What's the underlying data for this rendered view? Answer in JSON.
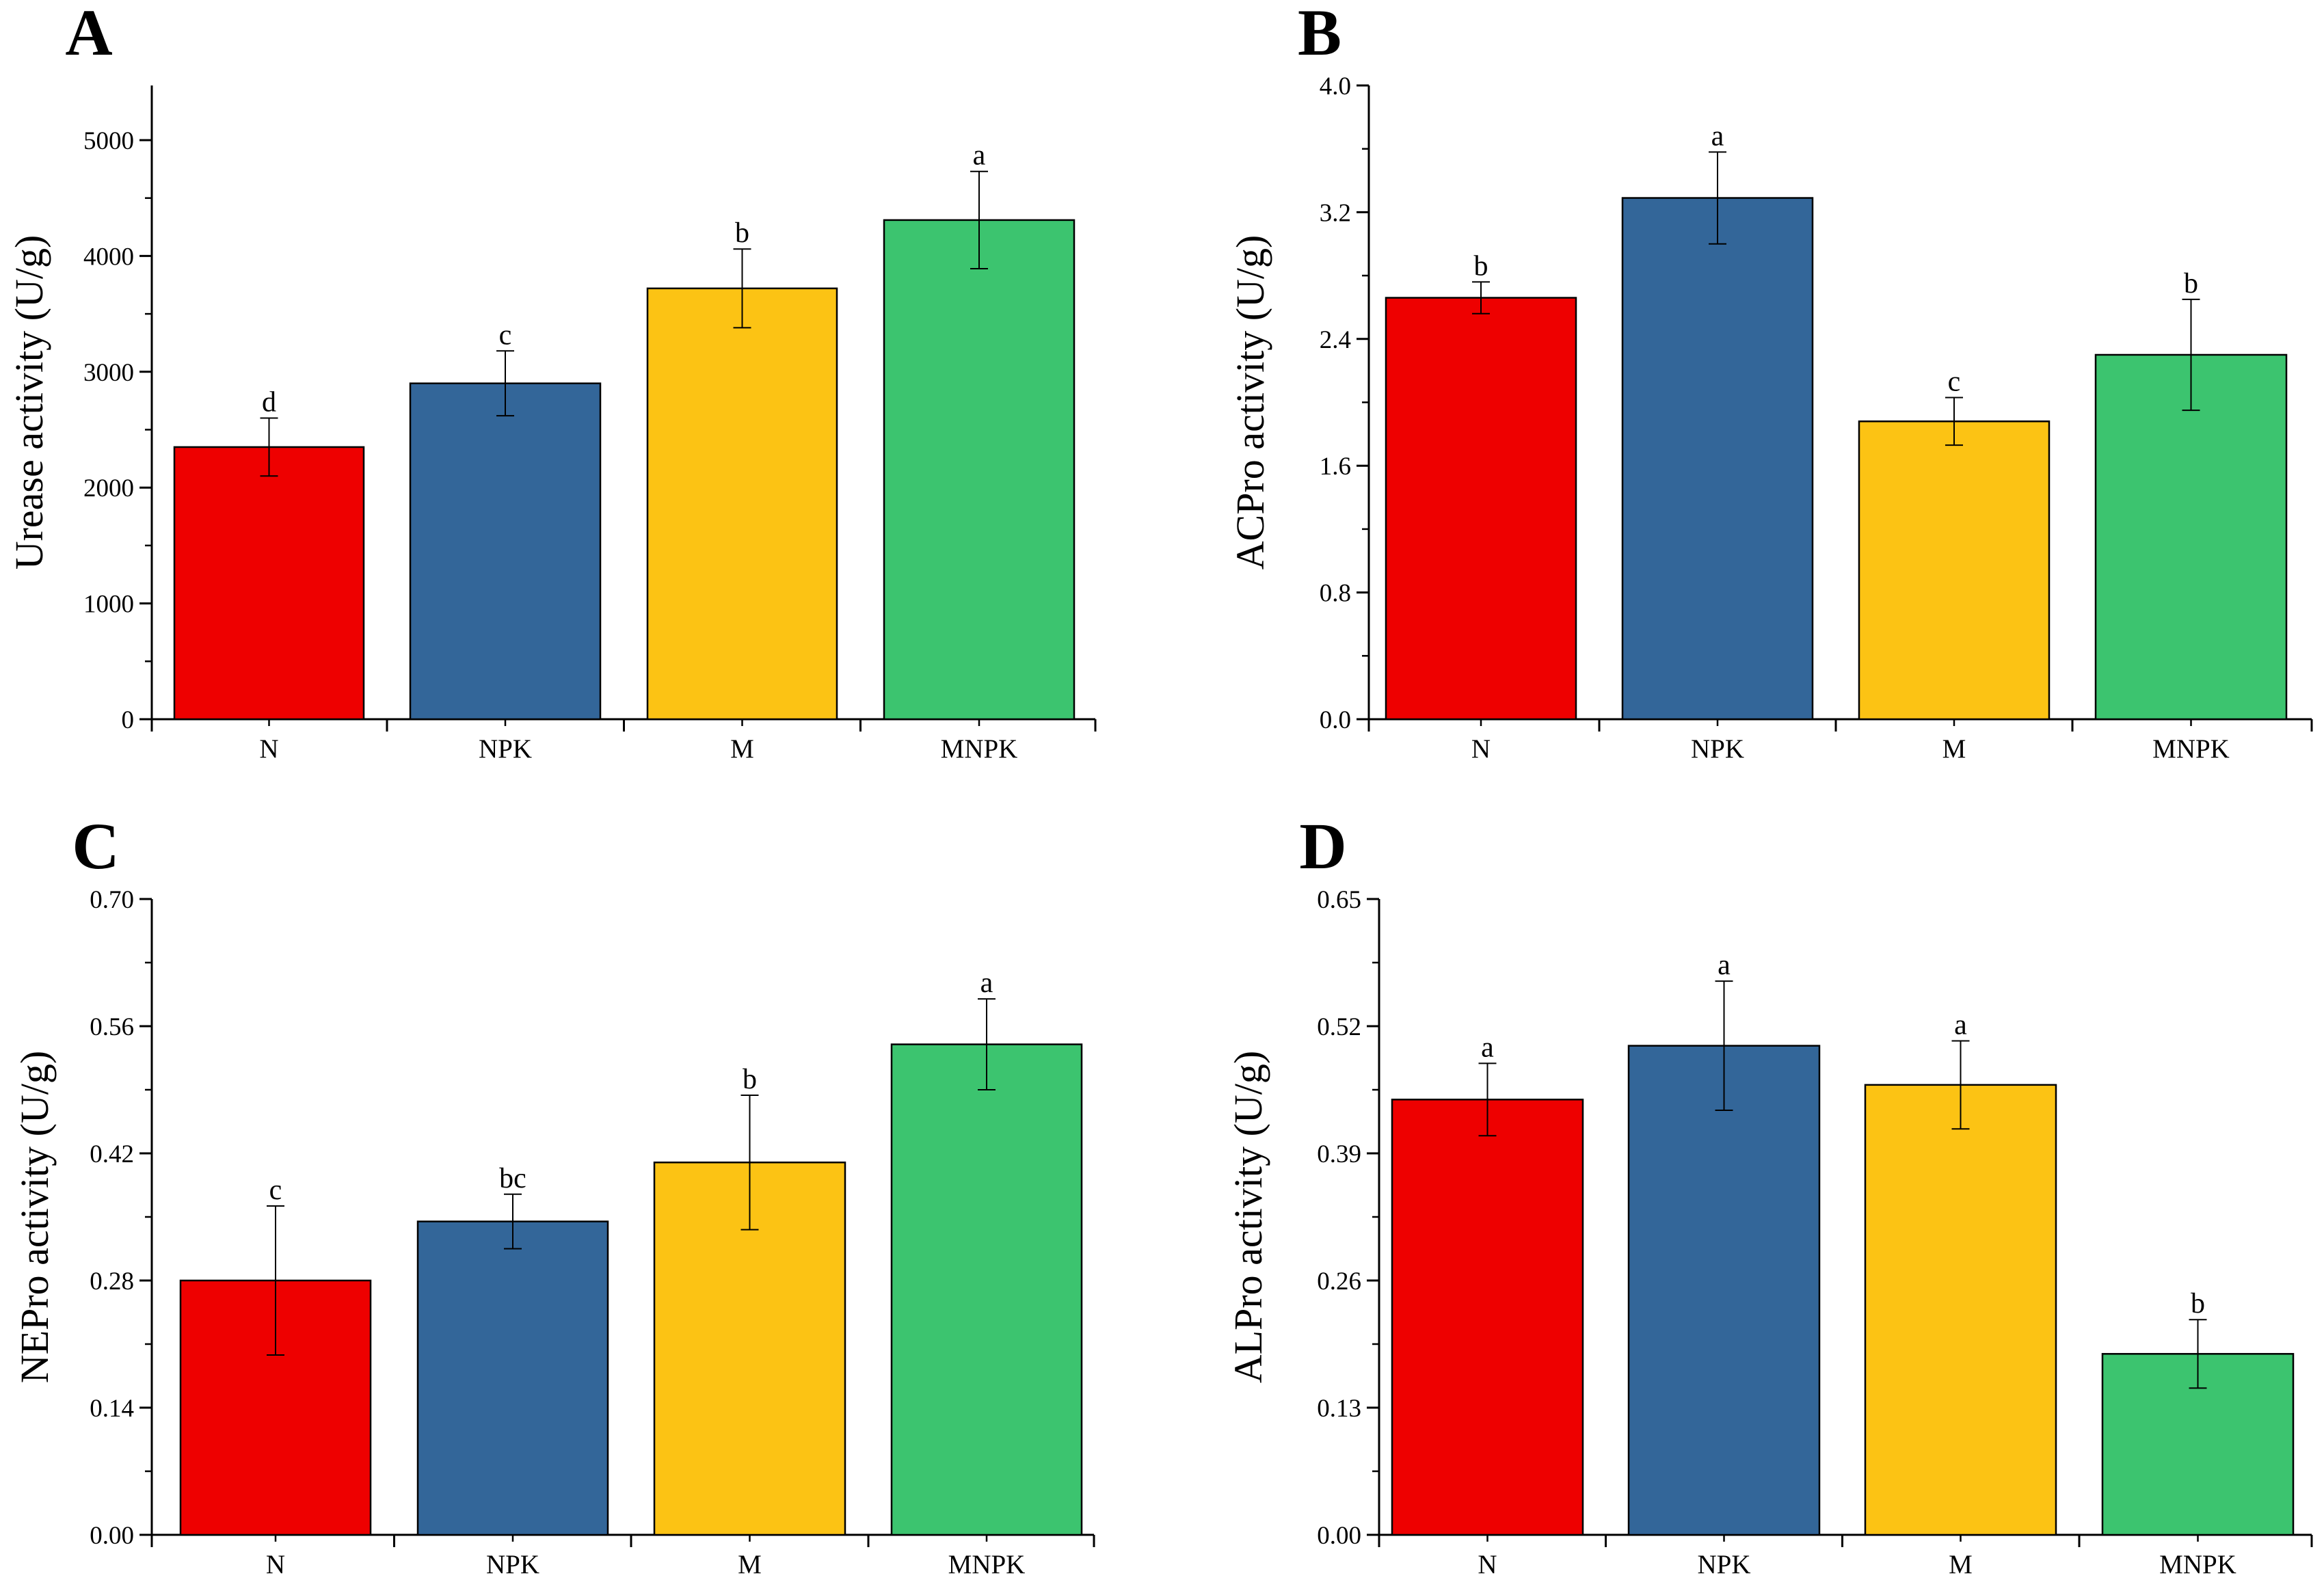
{
  "chart_data": [
    {
      "type": "bar",
      "panel": "A",
      "categories": [
        "N",
        "NPK",
        "M",
        "MNPK"
      ],
      "values": [
        2350,
        2900,
        3720,
        4310
      ],
      "errors": [
        250,
        280,
        340,
        420
      ],
      "significance": [
        "d",
        "c",
        "b",
        "a"
      ],
      "colors": [
        "#ee0000",
        "#336699",
        "#fcc314",
        "#3cc46f"
      ],
      "ylabel": "Urease activity (U/g)",
      "ylim": [
        0,
        5500
      ],
      "yticks": [
        0,
        1000,
        2000,
        3000,
        4000,
        5000
      ],
      "ytick_labels": [
        "0",
        "1000",
        "2000",
        "3000",
        "4000",
        "5000"
      ]
    },
    {
      "type": "bar",
      "panel": "B",
      "categories": [
        "N",
        "NPK",
        "M",
        "MNPK"
      ],
      "values": [
        2.66,
        3.29,
        1.88,
        2.3
      ],
      "errors": [
        0.1,
        0.29,
        0.15,
        0.35
      ],
      "significance": [
        "b",
        "a",
        "c",
        "b"
      ],
      "colors": [
        "#ee0000",
        "#336699",
        "#fcc314",
        "#3cc46f"
      ],
      "ylabel": "ACPro activity (U/g)",
      "ylim": [
        0,
        4.0
      ],
      "yticks": [
        0,
        0.8,
        1.6,
        2.4,
        3.2,
        4.0
      ],
      "ytick_labels": [
        "0.0",
        "0.8",
        "1.6",
        "2.4",
        "3.2",
        "4.0"
      ]
    },
    {
      "type": "bar",
      "panel": "C",
      "categories": [
        "N",
        "NPK",
        "M",
        "MNPK"
      ],
      "values": [
        0.28,
        0.345,
        0.41,
        0.54
      ],
      "errors": [
        0.082,
        0.03,
        0.074,
        0.05
      ],
      "significance": [
        "c",
        "bc",
        "b",
        "a"
      ],
      "colors": [
        "#ee0000",
        "#336699",
        "#fcc314",
        "#3cc46f"
      ],
      "ylabel": "NEPro activity (U/g)",
      "ylim": [
        0,
        0.7
      ],
      "yticks": [
        0,
        0.14,
        0.28,
        0.42,
        0.56,
        0.7
      ],
      "ytick_labels": [
        "0.00",
        "0.14",
        "0.28",
        "0.42",
        "0.56",
        "0.70"
      ]
    },
    {
      "type": "bar",
      "panel": "D",
      "categories": [
        "N",
        "NPK",
        "M",
        "MNPK"
      ],
      "values": [
        0.445,
        0.5,
        0.46,
        0.185
      ],
      "errors": [
        0.037,
        0.066,
        0.045,
        0.035
      ],
      "significance": [
        "a",
        "a",
        "a",
        "b"
      ],
      "colors": [
        "#ee0000",
        "#336699",
        "#fcc314",
        "#3cc46f"
      ],
      "ylabel": "ALPro activity (U/g)",
      "ylim": [
        0,
        0.65
      ],
      "yticks": [
        0,
        0.13,
        0.26,
        0.39,
        0.52,
        0.65
      ],
      "ytick_labels": [
        "0.00",
        "0.13",
        "0.26",
        "0.39",
        "0.52",
        "0.65"
      ]
    }
  ]
}
